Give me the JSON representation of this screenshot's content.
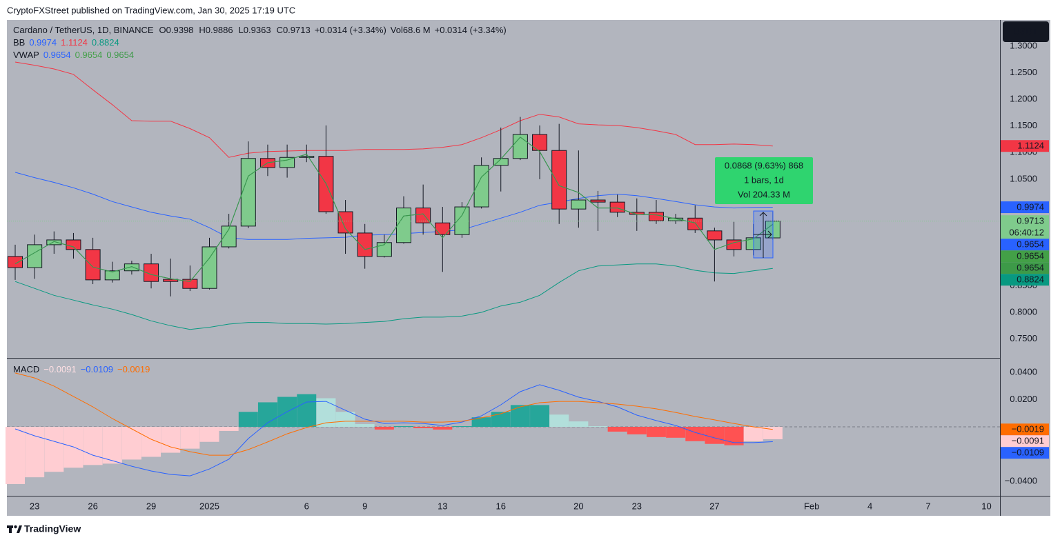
{
  "header": {
    "publisher": "CryptoFXStreet published on TradingView.com, Jan 30, 2025 17:19 UTC"
  },
  "footer": {
    "brand": "TradingView"
  },
  "chart_data": [
    {
      "type": "candlestick",
      "title": "Cardano / TetherUS, 1D, BINANCE",
      "ohlc_keys": [
        "O",
        "H",
        "L",
        "C"
      ],
      "change": "+0.0314 (+3.34%)",
      "volume_key": "Vol",
      "volume": "68.6 M",
      "currency": "USDT",
      "countdown": "06:40:12",
      "price_line": true,
      "up_color": "#7fcb8c",
      "down_color": "#f23645",
      "categories": [
        null,
        "23",
        null,
        null,
        "26",
        null,
        null,
        "29",
        null,
        null,
        "2025",
        null,
        null,
        null,
        null,
        "6",
        null,
        null,
        "9",
        null,
        null,
        null,
        "13",
        null,
        null,
        "16",
        null,
        null,
        null,
        "20",
        null,
        null,
        "23",
        null,
        null,
        null,
        "27",
        null,
        null,
        null,
        null,
        "Feb",
        null,
        null,
        "4",
        null,
        null,
        "7",
        null,
        null,
        "10"
      ],
      "open": [
        0.905,
        0.884,
        0.927,
        0.936,
        0.918,
        0.861,
        0.878,
        0.891,
        0.862,
        0.862,
        0.845,
        0.923,
        0.962,
        1.089,
        1.072,
        1.091,
        1.093,
        0.989,
        0.949,
        0.905,
        0.931,
        0.996,
        0.968,
        0.946,
        0.998,
        1.076,
        1.089,
        1.134,
        1.104,
        0.994,
        1.011,
        1.007,
        0.988,
        0.988,
        0.972,
        0.977,
        0.953,
        0.936,
        0.918,
        0.9398,
        null,
        null,
        null,
        null,
        null,
        null,
        null,
        null,
        null,
        null,
        null
      ],
      "high": [
        0.927,
        0.946,
        0.952,
        0.949,
        0.94,
        0.895,
        0.897,
        0.91,
        0.901,
        0.888,
        0.94,
        0.985,
        1.121,
        1.115,
        1.115,
        1.115,
        1.151,
        1.011,
        0.966,
        0.946,
        1.018,
        1.04,
        0.998,
        1.007,
        1.091,
        1.147,
        1.167,
        1.151,
        1.154,
        1.104,
        1.028,
        1.021,
        1.014,
        1.011,
        0.985,
        1.001,
        0.959,
        0.97,
        0.966,
        0.9886,
        null,
        null,
        null,
        null,
        null,
        null,
        null,
        null,
        null,
        null,
        null
      ],
      "low": [
        0.861,
        0.863,
        0.91,
        0.901,
        0.853,
        0.856,
        0.871,
        0.845,
        0.83,
        0.84,
        0.843,
        0.92,
        0.958,
        1.056,
        1.053,
        1.082,
        0.985,
        0.91,
        0.882,
        0.903,
        0.929,
        0.946,
        0.876,
        0.94,
        0.995,
        1.027,
        1.086,
        1.05,
        0.966,
        0.959,
        0.953,
        0.979,
        0.953,
        0.966,
        0.966,
        0.949,
        0.858,
        0.905,
        0.907,
        0.9363,
        null,
        null,
        null,
        null,
        null,
        null,
        null,
        null,
        null,
        null,
        null
      ],
      "close": [
        0.884,
        0.927,
        0.936,
        0.918,
        0.861,
        0.878,
        0.891,
        0.858,
        0.858,
        0.845,
        0.923,
        0.962,
        1.089,
        1.072,
        1.091,
        1.093,
        0.989,
        0.949,
        0.905,
        0.931,
        0.996,
        0.968,
        0.946,
        0.998,
        1.076,
        1.089,
        1.134,
        1.104,
        0.994,
        1.011,
        1.007,
        0.988,
        0.984,
        0.972,
        0.977,
        0.955,
        0.936,
        0.918,
        0.94,
        0.9713,
        null,
        null,
        null,
        null,
        null,
        null,
        null,
        null,
        null,
        null,
        null
      ],
      "indicators": [
        {
          "name": "BB",
          "lines": [
            {
              "color": "#2962ff",
              "values": [
                1.063,
                1.053,
                1.044,
                1.034,
                1.022,
                1.008,
                0.998,
                0.988,
                0.981,
                0.975,
                0.959,
                0.94,
                0.937,
                0.937,
                0.937,
                0.939,
                0.94,
                0.941,
                0.945,
                0.946,
                0.948,
                0.95,
                0.952,
                0.955,
                0.966,
                0.977,
                0.988,
                1.001,
                1.007,
                1.014,
                1.019,
                1.022,
                1.019,
                1.014,
                1.008,
                1.002,
                0.998,
                0.996,
                0.997,
                0.9974,
                null,
                null,
                null,
                null,
                null,
                null,
                null,
                null,
                null,
                null,
                null
              ]
            },
            {
              "color": "#f23645",
              "values": [
                1.27,
                1.264,
                1.257,
                1.247,
                1.218,
                1.19,
                1.16,
                1.159,
                1.159,
                1.145,
                1.128,
                1.091,
                1.099,
                1.102,
                1.103,
                1.104,
                1.104,
                1.104,
                1.106,
                1.106,
                1.106,
                1.107,
                1.11,
                1.115,
                1.128,
                1.143,
                1.16,
                1.172,
                1.167,
                1.154,
                1.152,
                1.151,
                1.147,
                1.141,
                1.134,
                1.115,
                1.115,
                1.116,
                1.115,
                1.1124,
                null,
                null,
                null,
                null,
                null,
                null,
                null,
                null,
                null,
                null,
                null
              ]
            },
            {
              "color": "#089981",
              "values": [
                0.858,
                0.845,
                0.832,
                0.823,
                0.814,
                0.806,
                0.796,
                0.784,
                0.775,
                0.768,
                0.772,
                0.778,
                0.781,
                0.781,
                0.779,
                0.779,
                0.778,
                0.779,
                0.781,
                0.783,
                0.788,
                0.791,
                0.791,
                0.793,
                0.8,
                0.812,
                0.819,
                0.832,
                0.856,
                0.878,
                0.887,
                0.889,
                0.891,
                0.891,
                0.887,
                0.879,
                0.874,
                0.873,
                0.878,
                0.8824,
                null,
                null,
                null,
                null,
                null,
                null,
                null,
                null,
                null,
                null,
                null
              ]
            }
          ]
        },
        {
          "name": "VWAP",
          "lines": [
            {
              "color": "#2962ff",
              "values": [
                0.891,
                0.912,
                0.933,
                0.923,
                0.885,
                0.876,
                0.886,
                0.871,
                0.863,
                0.858,
                0.902,
                0.956,
                1.056,
                1.081,
                1.086,
                1.097,
                1.042,
                0.957,
                0.918,
                0.927,
                0.981,
                0.985,
                0.94,
                0.982,
                1.054,
                1.088,
                1.129,
                1.102,
                1.038,
                1.025,
                0.996,
                0.996,
                0.984,
                0.983,
                0.976,
                0.968,
                0.918,
                0.931,
                0.938,
                0.9654,
                null,
                null,
                null,
                null,
                null,
                null,
                null,
                null,
                null,
                null,
                null
              ]
            },
            {
              "color": "#43a047",
              "values": [
                0.891,
                0.912,
                0.933,
                0.923,
                0.885,
                0.876,
                0.886,
                0.871,
                0.863,
                0.858,
                0.902,
                0.956,
                1.056,
                1.081,
                1.086,
                1.097,
                1.042,
                0.957,
                0.918,
                0.927,
                0.981,
                0.985,
                0.94,
                0.982,
                1.054,
                1.088,
                1.129,
                1.102,
                1.038,
                1.025,
                0.996,
                0.996,
                0.984,
                0.983,
                0.976,
                0.968,
                0.918,
                0.931,
                0.938,
                0.9654,
                null,
                null,
                null,
                null,
                null,
                null,
                null,
                null,
                null,
                null,
                null
              ]
            },
            {
              "color": "#3d9a48",
              "values": [
                0.891,
                0.912,
                0.933,
                0.923,
                0.885,
                0.876,
                0.886,
                0.871,
                0.863,
                0.858,
                0.902,
                0.956,
                1.056,
                1.081,
                1.086,
                1.097,
                1.042,
                0.957,
                0.918,
                0.927,
                0.981,
                0.985,
                0.94,
                0.982,
                1.054,
                1.088,
                1.129,
                1.102,
                1.038,
                1.025,
                0.996,
                0.996,
                0.984,
                0.983,
                0.976,
                0.968,
                0.918,
                0.931,
                0.938,
                0.9654,
                null,
                null,
                null,
                null,
                null,
                null,
                null,
                null,
                null,
                null,
                null
              ]
            }
          ]
        }
      ],
      "ylim": [
        0.7145,
        1.349
      ],
      "yticks": [
        {
          "value": 1.3,
          "label": "1.3000"
        },
        {
          "value": 1.25,
          "label": "1.2500"
        },
        {
          "value": 1.2,
          "label": "1.2000"
        },
        {
          "value": 1.15,
          "label": "1.1500"
        },
        {
          "value": 1.1,
          "label": "1.1000"
        },
        {
          "value": 1.05,
          "label": "1.0500"
        },
        {
          "value": 0.85,
          "label": "0.8500"
        },
        {
          "value": 0.8,
          "label": "0.8000"
        },
        {
          "value": 0.75,
          "label": "0.7500"
        }
      ],
      "measure": {
        "lines": [
          "0.0868 (9.63%) 868",
          "1 bars, 1d",
          "Vol 204.33 M"
        ]
      }
    },
    {
      "type": "macd",
      "title": "MACD",
      "ylim": [
        -0.0506,
        0.0501
      ],
      "yticks": [
        {
          "value": 0.04,
          "label": "0.0400"
        },
        {
          "value": 0.02,
          "label": "0.0200"
        },
        {
          "value": -0.04,
          "label": "−0.0400"
        }
      ],
      "histogram": {
        "colors": [
          "#26a69a",
          "#b2dfdb",
          "#ffcdd2",
          "#ff5252"
        ],
        "last": {
          "value": -0.0091,
          "label": "−0.0091"
        },
        "values": [
          -0.042,
          -0.037,
          -0.033,
          -0.03,
          -0.028,
          -0.027,
          -0.024,
          -0.022,
          -0.019,
          -0.016,
          -0.011,
          -0.003,
          0.011,
          0.018,
          0.022,
          0.024,
          0.021,
          0.011,
          0.002,
          -0.002,
          0.0005,
          -0.001,
          -0.002,
          0.0005,
          0.007,
          0.011,
          0.016,
          0.016,
          0.009,
          0.004,
          0.0005,
          -0.0035,
          -0.0055,
          -0.0075,
          -0.008,
          -0.0105,
          -0.0125,
          -0.0135,
          -0.0105,
          -0.0091,
          null,
          null,
          null,
          null,
          null,
          null,
          null,
          null,
          null,
          null,
          null
        ]
      },
      "series": [
        {
          "color": "#2962ff",
          "last": {
            "value": -0.0109,
            "label": "−0.0109"
          },
          "values": [
            -0.0015,
            -0.0066,
            -0.0106,
            -0.0147,
            -0.0208,
            -0.0248,
            -0.0289,
            -0.0324,
            -0.0349,
            -0.036,
            -0.0309,
            -0.0238,
            -0.0086,
            0.003,
            0.0111,
            0.0182,
            0.0187,
            0.0122,
            0.0056,
            0.0025,
            0.003,
            0.0025,
            0.001,
            0.0035,
            0.0081,
            0.0162,
            0.0258,
            0.0309,
            0.0268,
            0.0218,
            0.0187,
            0.0147,
            0.0086,
            0.0046,
            0.001,
            -0.0041,
            -0.0081,
            -0.0116,
            -0.0116,
            -0.0109,
            null,
            null,
            null,
            null,
            null,
            null,
            null,
            null,
            null,
            null,
            null
          ]
        },
        {
          "color": "#ff6d00",
          "last": {
            "value": -0.0019,
            "label": "−0.0019"
          },
          "values": [
            0.0395,
            0.0359,
            0.0299,
            0.0223,
            0.0147,
            0.0061,
            -0.0015,
            -0.0091,
            -0.0147,
            -0.0182,
            -0.0208,
            -0.0208,
            -0.0167,
            -0.0111,
            -0.0051,
            -0.0005,
            0.003,
            0.0041,
            0.0041,
            0.0041,
            0.0041,
            0.0035,
            0.0035,
            0.0041,
            0.0066,
            0.0096,
            0.0147,
            0.0177,
            0.0187,
            0.0187,
            0.0177,
            0.0167,
            0.0152,
            0.0132,
            0.0106,
            0.0076,
            0.0051,
            0.0025,
            0.0,
            -0.0019,
            null,
            null,
            null,
            null,
            null,
            null,
            null,
            null,
            null,
            null,
            null
          ]
        }
      ]
    }
  ]
}
